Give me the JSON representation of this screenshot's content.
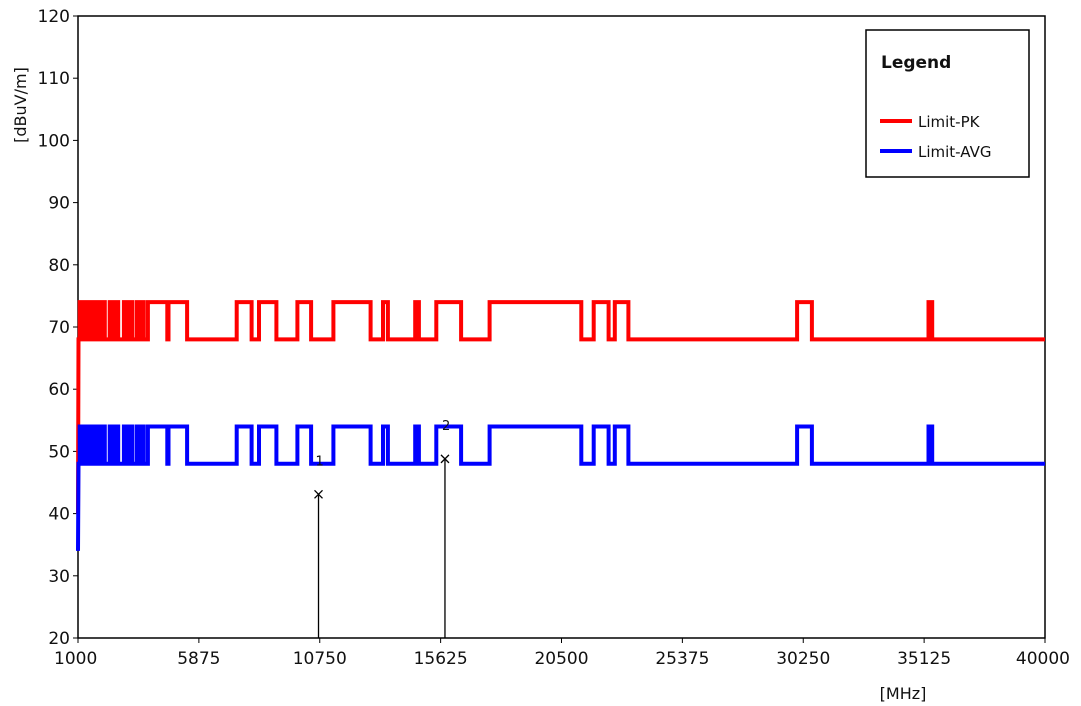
{
  "chart_data": {
    "type": "line",
    "title": "",
    "xlabel": "[MHz]",
    "ylabel": "[dBuV/m]",
    "xlim": [
      1000,
      40000
    ],
    "ylim": [
      20,
      120
    ],
    "x_ticks": [
      1000,
      5875,
      10750,
      15625,
      20500,
      25375,
      30250,
      35125,
      40000
    ],
    "y_ticks": [
      20,
      30,
      40,
      50,
      60,
      70,
      80,
      90,
      100,
      110,
      120
    ],
    "grid": false,
    "legend": {
      "title": "Legend",
      "position": "top-right"
    },
    "series": [
      {
        "name": "Limit-PK",
        "color": "#ff0000",
        "points": [
          [
            1000,
            40
          ],
          [
            1020,
            68
          ],
          [
            1070,
            68
          ],
          [
            1070,
            74
          ],
          [
            1130,
            74
          ],
          [
            1130,
            68
          ],
          [
            1190,
            68
          ],
          [
            1190,
            74
          ],
          [
            1250,
            74
          ],
          [
            1250,
            68
          ],
          [
            1330,
            68
          ],
          [
            1330,
            74
          ],
          [
            1390,
            74
          ],
          [
            1390,
            68
          ],
          [
            1460,
            68
          ],
          [
            1460,
            74
          ],
          [
            1520,
            74
          ],
          [
            1520,
            68
          ],
          [
            1610,
            68
          ],
          [
            1610,
            74
          ],
          [
            1680,
            74
          ],
          [
            1680,
            68
          ],
          [
            1800,
            68
          ],
          [
            1800,
            74
          ],
          [
            1880,
            74
          ],
          [
            1880,
            68
          ],
          [
            1990,
            68
          ],
          [
            1990,
            74
          ],
          [
            2080,
            74
          ],
          [
            2080,
            68
          ],
          [
            2280,
            68
          ],
          [
            2280,
            74
          ],
          [
            2370,
            74
          ],
          [
            2370,
            68
          ],
          [
            2520,
            68
          ],
          [
            2520,
            74
          ],
          [
            2620,
            74
          ],
          [
            2620,
            68
          ],
          [
            2850,
            68
          ],
          [
            2850,
            74
          ],
          [
            2960,
            74
          ],
          [
            2960,
            68
          ],
          [
            3100,
            68
          ],
          [
            3100,
            74
          ],
          [
            3200,
            74
          ],
          [
            3200,
            68
          ],
          [
            3380,
            68
          ],
          [
            3380,
            74
          ],
          [
            3460,
            74
          ],
          [
            3460,
            68
          ],
          [
            3560,
            68
          ],
          [
            3560,
            74
          ],
          [
            3650,
            74
          ],
          [
            3650,
            68
          ],
          [
            3820,
            68
          ],
          [
            3820,
            74
          ],
          [
            4600,
            74
          ],
          [
            4600,
            68
          ],
          [
            4650,
            68
          ],
          [
            4650,
            74
          ],
          [
            5400,
            74
          ],
          [
            5400,
            68
          ],
          [
            7400,
            68
          ],
          [
            7400,
            74
          ],
          [
            8000,
            74
          ],
          [
            8000,
            68
          ],
          [
            8300,
            68
          ],
          [
            8300,
            74
          ],
          [
            9000,
            74
          ],
          [
            9000,
            68
          ],
          [
            9850,
            68
          ],
          [
            9850,
            74
          ],
          [
            10400,
            74
          ],
          [
            10400,
            68
          ],
          [
            11300,
            68
          ],
          [
            11300,
            74
          ],
          [
            12800,
            74
          ],
          [
            12800,
            68
          ],
          [
            13300,
            68
          ],
          [
            13300,
            74
          ],
          [
            13500,
            74
          ],
          [
            13500,
            68
          ],
          [
            14600,
            68
          ],
          [
            14600,
            74
          ],
          [
            14750,
            74
          ],
          [
            14750,
            68
          ],
          [
            15450,
            68
          ],
          [
            15450,
            74
          ],
          [
            16450,
            74
          ],
          [
            16450,
            68
          ],
          [
            17600,
            68
          ],
          [
            17600,
            74
          ],
          [
            21300,
            74
          ],
          [
            21300,
            68
          ],
          [
            21800,
            68
          ],
          [
            21800,
            74
          ],
          [
            22400,
            74
          ],
          [
            22400,
            68
          ],
          [
            22650,
            68
          ],
          [
            22650,
            74
          ],
          [
            23200,
            74
          ],
          [
            23200,
            68
          ],
          [
            30000,
            68
          ],
          [
            30000,
            74
          ],
          [
            30600,
            74
          ],
          [
            30600,
            68
          ],
          [
            35300,
            68
          ],
          [
            35300,
            74
          ],
          [
            35450,
            74
          ],
          [
            35450,
            68
          ],
          [
            40000,
            68
          ]
        ]
      },
      {
        "name": "Limit-AVG",
        "color": "#0000ff",
        "points": [
          [
            1000,
            34
          ],
          [
            1020,
            48
          ],
          [
            1070,
            48
          ],
          [
            1070,
            54
          ],
          [
            1130,
            54
          ],
          [
            1130,
            48
          ],
          [
            1190,
            48
          ],
          [
            1190,
            54
          ],
          [
            1250,
            54
          ],
          [
            1250,
            48
          ],
          [
            1330,
            48
          ],
          [
            1330,
            54
          ],
          [
            1390,
            54
          ],
          [
            1390,
            48
          ],
          [
            1460,
            48
          ],
          [
            1460,
            54
          ],
          [
            1520,
            54
          ],
          [
            1520,
            48
          ],
          [
            1610,
            48
          ],
          [
            1610,
            54
          ],
          [
            1680,
            54
          ],
          [
            1680,
            48
          ],
          [
            1800,
            48
          ],
          [
            1800,
            54
          ],
          [
            1880,
            54
          ],
          [
            1880,
            48
          ],
          [
            1990,
            48
          ],
          [
            1990,
            54
          ],
          [
            2080,
            54
          ],
          [
            2080,
            48
          ],
          [
            2280,
            48
          ],
          [
            2280,
            54
          ],
          [
            2370,
            54
          ],
          [
            2370,
            48
          ],
          [
            2520,
            48
          ],
          [
            2520,
            54
          ],
          [
            2620,
            54
          ],
          [
            2620,
            48
          ],
          [
            2850,
            48
          ],
          [
            2850,
            54
          ],
          [
            2960,
            54
          ],
          [
            2960,
            48
          ],
          [
            3100,
            48
          ],
          [
            3100,
            54
          ],
          [
            3200,
            54
          ],
          [
            3200,
            48
          ],
          [
            3380,
            48
          ],
          [
            3380,
            54
          ],
          [
            3460,
            54
          ],
          [
            3460,
            48
          ],
          [
            3560,
            48
          ],
          [
            3560,
            54
          ],
          [
            3650,
            54
          ],
          [
            3650,
            48
          ],
          [
            3820,
            48
          ],
          [
            3820,
            54
          ],
          [
            4600,
            54
          ],
          [
            4600,
            48
          ],
          [
            4650,
            48
          ],
          [
            4650,
            54
          ],
          [
            5400,
            54
          ],
          [
            5400,
            48
          ],
          [
            7400,
            48
          ],
          [
            7400,
            54
          ],
          [
            8000,
            54
          ],
          [
            8000,
            48
          ],
          [
            8300,
            48
          ],
          [
            8300,
            54
          ],
          [
            9000,
            54
          ],
          [
            9000,
            48
          ],
          [
            9850,
            48
          ],
          [
            9850,
            54
          ],
          [
            10400,
            54
          ],
          [
            10400,
            48
          ],
          [
            11300,
            48
          ],
          [
            11300,
            54
          ],
          [
            12800,
            54
          ],
          [
            12800,
            48
          ],
          [
            13300,
            48
          ],
          [
            13300,
            54
          ],
          [
            13500,
            54
          ],
          [
            13500,
            48
          ],
          [
            14600,
            48
          ],
          [
            14600,
            54
          ],
          [
            14750,
            54
          ],
          [
            14750,
            48
          ],
          [
            15450,
            48
          ],
          [
            15450,
            54
          ],
          [
            16450,
            54
          ],
          [
            16450,
            48
          ],
          [
            17600,
            48
          ],
          [
            17600,
            54
          ],
          [
            21300,
            54
          ],
          [
            21300,
            48
          ],
          [
            21800,
            48
          ],
          [
            21800,
            54
          ],
          [
            22400,
            54
          ],
          [
            22400,
            48
          ],
          [
            22650,
            48
          ],
          [
            22650,
            54
          ],
          [
            23200,
            54
          ],
          [
            23200,
            48
          ],
          [
            30000,
            48
          ],
          [
            30000,
            54
          ],
          [
            30600,
            54
          ],
          [
            30600,
            48
          ],
          [
            35300,
            48
          ],
          [
            35300,
            54
          ],
          [
            35450,
            54
          ],
          [
            35450,
            48
          ],
          [
            40000,
            48
          ]
        ]
      }
    ],
    "markers": [
      {
        "label": "1",
        "x": 10700,
        "y": 43.1
      },
      {
        "label": "2",
        "x": 15800,
        "y": 48.8
      }
    ]
  }
}
